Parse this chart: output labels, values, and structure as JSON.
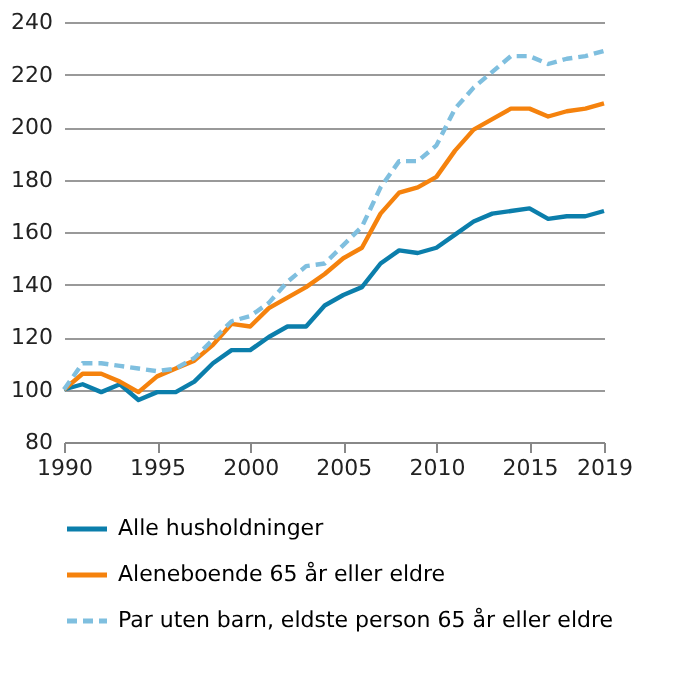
{
  "chart_data": {
    "type": "line",
    "x": [
      1990,
      1991,
      1992,
      1993,
      1994,
      1995,
      1996,
      1997,
      1998,
      1999,
      2000,
      2001,
      2002,
      2003,
      2004,
      2005,
      2006,
      2007,
      2008,
      2009,
      2010,
      2011,
      2012,
      2013,
      2014,
      2015,
      2016,
      2017,
      2018,
      2019
    ],
    "series": [
      {
        "name": "Alle husholdninger",
        "color": "#0b7eab",
        "line_style": "solid",
        "values": [
          100,
          102,
          99,
          102,
          96,
          99,
          99,
          103,
          110,
          115,
          115,
          120,
          124,
          124,
          132,
          136,
          139,
          148,
          153,
          152,
          154,
          159,
          164,
          167,
          168,
          169,
          165,
          166,
          166,
          168
        ]
      },
      {
        "name": "Aleneboende 65 år eller eldre",
        "color": "#f5820d",
        "line_style": "solid",
        "values": [
          100,
          106,
          106,
          103,
          99,
          105,
          108,
          111,
          117,
          125,
          124,
          131,
          135,
          139,
          144,
          150,
          154,
          167,
          175,
          177,
          181,
          191,
          199,
          203,
          207,
          207,
          204,
          206,
          207,
          209
        ]
      },
      {
        "name": "Par uten barn, eldste person 65 år eller eldre",
        "color": "#7fbfdf",
        "line_style": "dashed",
        "values": [
          100,
          110,
          110,
          109,
          108,
          107,
          108,
          112,
          119,
          126,
          128,
          133,
          141,
          147,
          148,
          155,
          162,
          177,
          187,
          187,
          193,
          207,
          215,
          221,
          227,
          227,
          224,
          226,
          227,
          229
        ]
      }
    ],
    "xlim": [
      1990,
      2019
    ],
    "xticks": [
      1990,
      1995,
      2000,
      2005,
      2010,
      2015,
      2019
    ],
    "ylim": [
      80,
      240
    ],
    "yticks": [
      80,
      100,
      120,
      140,
      160,
      180,
      200,
      220,
      240
    ],
    "grid": "y",
    "legend": "bottom",
    "marker": "none"
  }
}
